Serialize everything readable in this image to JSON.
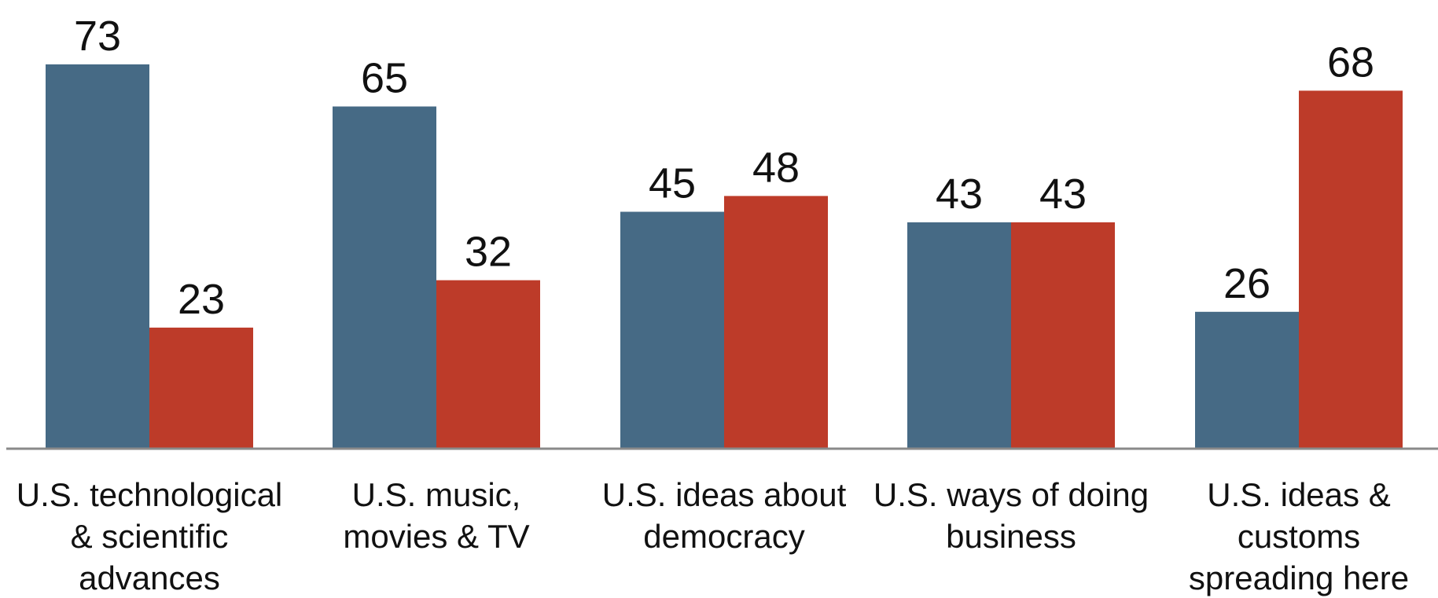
{
  "chart_data": {
    "type": "bar",
    "categories": [
      "U.S. technological & scientific advances",
      "U.S. music, movies & TV",
      "U.S. ideas about democracy",
      "U.S. ways of doing business",
      "U.S. ideas & customs spreading here"
    ],
    "category_lines": [
      [
        "U.S. technological",
        "& scientific",
        "advances"
      ],
      [
        "U.S. music,",
        "movies & TV"
      ],
      [
        "U.S. ideas about",
        "democracy"
      ],
      [
        "U.S. ways of doing",
        "business"
      ],
      [
        "U.S. ideas &",
        "customs",
        "spreading here"
      ]
    ],
    "series": [
      {
        "values": [
          73,
          65,
          45,
          43,
          26
        ],
        "color": "#466a85"
      },
      {
        "values": [
          23,
          32,
          48,
          43,
          68
        ],
        "color": "#bd3b29"
      }
    ],
    "title": "",
    "xlabel": "",
    "ylabel": "",
    "ylim": [
      0,
      85
    ],
    "grid": false,
    "legend": "none",
    "baseline_color": "#8a8a8a"
  }
}
